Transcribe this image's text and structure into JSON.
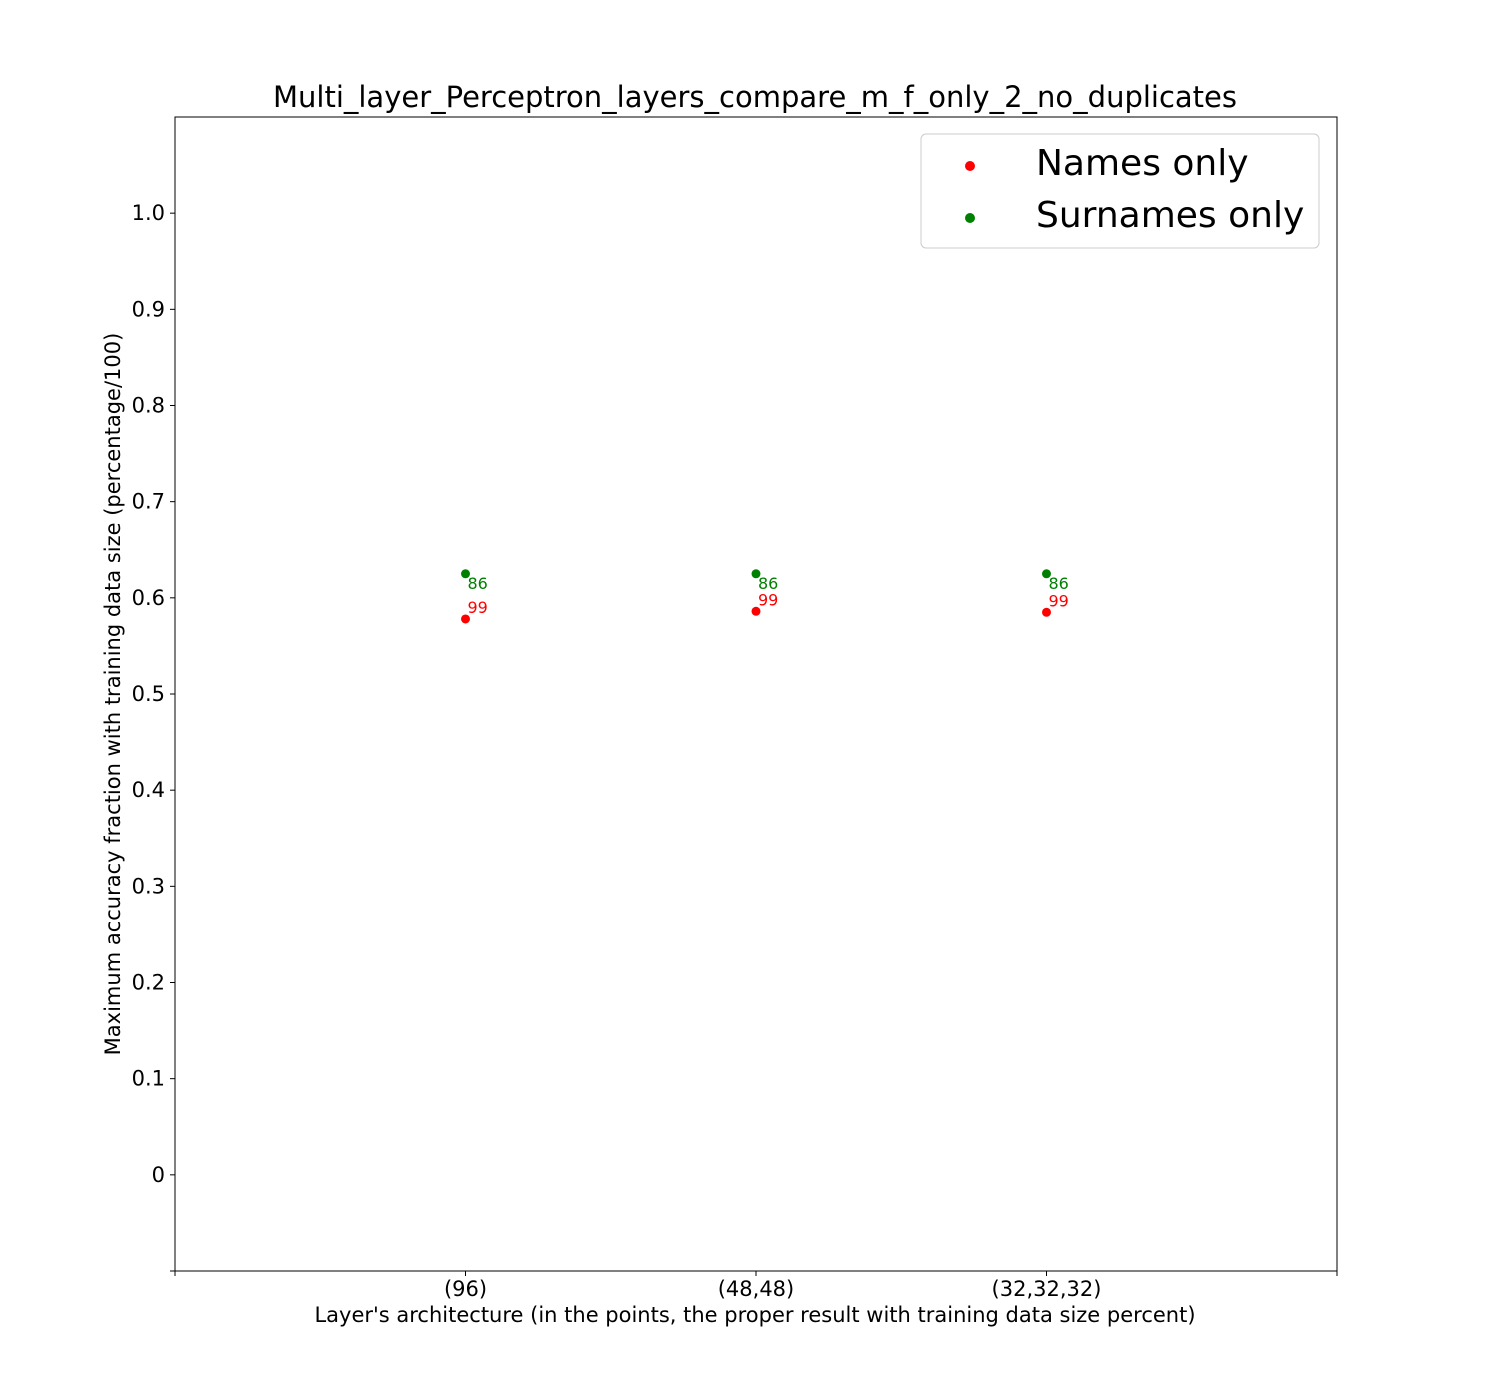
{
  "chart_data": {
    "type": "scatter",
    "title": "Multi_layer_Perceptron_layers_compare_m_f_only_2_no_duplicates",
    "xlabel": "Layer's architecture (in the points, the proper result with training data size percent)",
    "ylabel": "Maximum accuracy fraction with training data size (percentage/100)",
    "categories": [
      "(96)",
      "(48,48)",
      "(32,32,32)"
    ],
    "yticks": [
      0,
      0.1,
      0.2,
      0.3,
      0.4,
      0.5,
      0.6,
      0.7,
      0.8,
      0.9,
      1.0
    ],
    "ytick_labels": [
      "0",
      "0.1",
      "0.2",
      "0.3",
      "0.4",
      "0.5",
      "0.6",
      "0.7",
      "0.8",
      "0.9",
      "1.0"
    ],
    "ylim": [
      -0.1,
      1.1
    ],
    "legend_position": "top-right",
    "grid": false,
    "series": [
      {
        "name": "Names only",
        "color": "#ff0000",
        "values": [
          0.578,
          0.586,
          0.585
        ],
        "labels": [
          "99",
          "99",
          "99"
        ]
      },
      {
        "name": "Surnames only",
        "color": "#008000",
        "values": [
          0.625,
          0.625,
          0.625
        ],
        "labels": [
          "86",
          "86",
          "86"
        ]
      }
    ]
  }
}
